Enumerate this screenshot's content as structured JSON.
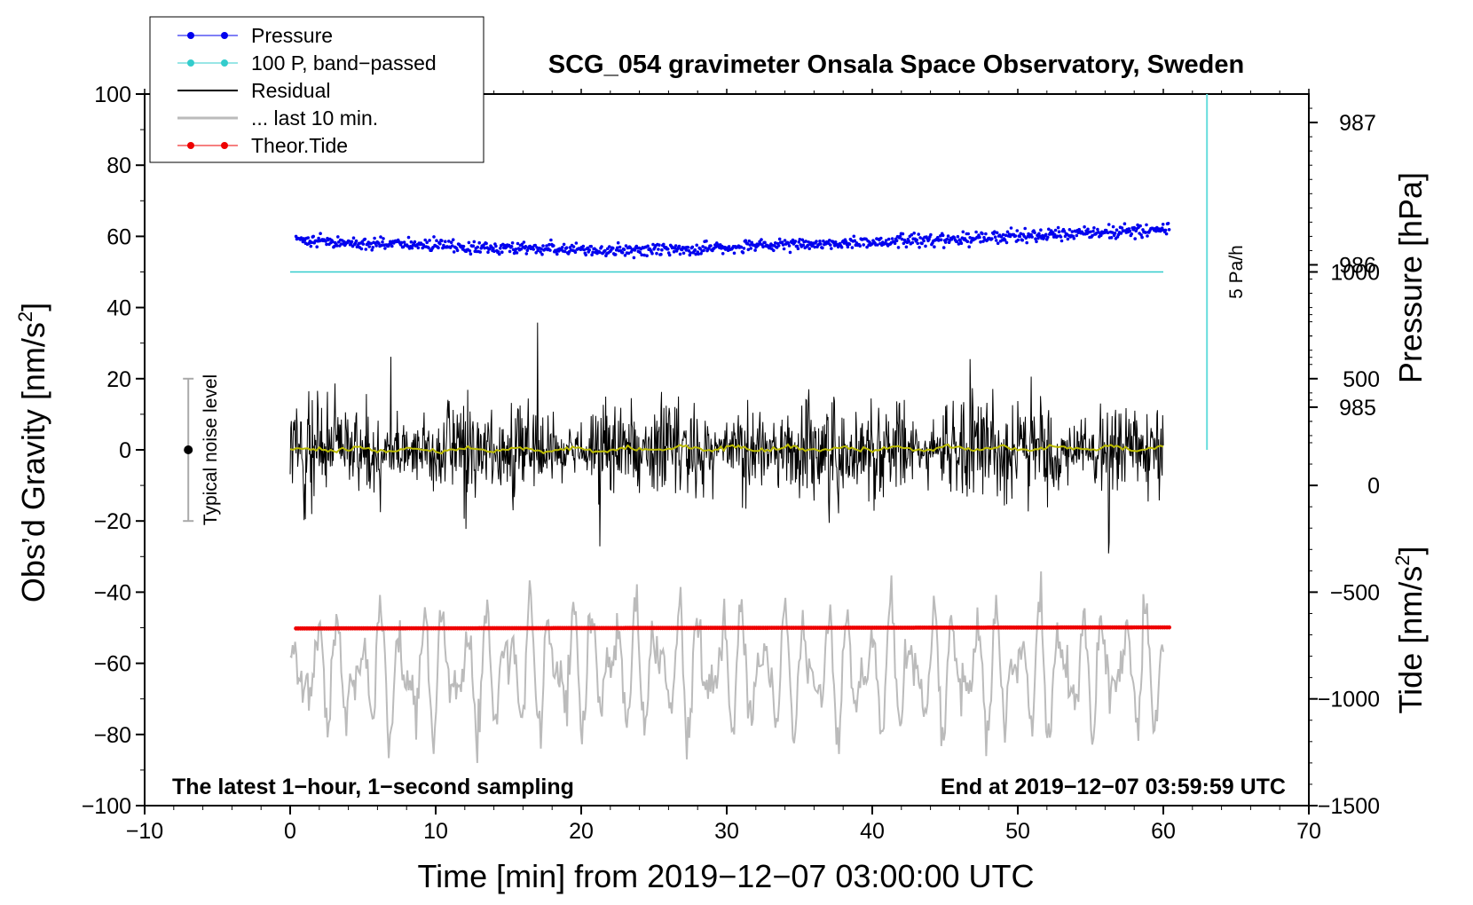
{
  "chart_data": {
    "type": "line",
    "title": "SCG_054 gravimeter Onsala Space Observatory, Sweden",
    "xlabel": "Time [min] from 2019−12−07 03:00:00 UTC",
    "ylabel_left_prefix": "Obs’d Gravity [nm/s",
    "ylabel_left_sup": "2",
    "ylabel_left_suffix": "]",
    "ylabel_pressure": "Pressure [hPa]",
    "ylabel_tide_prefix": "Tide [nm/s",
    "ylabel_tide_sup": "2",
    "ylabel_tide_suffix": "]",
    "xlim": [
      -10,
      70
    ],
    "ylim": [
      -100,
      100
    ],
    "x_ticks": [
      -10,
      0,
      10,
      20,
      30,
      40,
      50,
      60,
      70
    ],
    "x_tick_labels": [
      "−10",
      "0",
      "10",
      "20",
      "30",
      "40",
      "50",
      "60",
      "70"
    ],
    "y_ticks": [
      -100,
      -80,
      -60,
      -40,
      -20,
      0,
      20,
      40,
      60,
      80,
      100
    ],
    "y_tick_labels": [
      "−100",
      "−80",
      "−60",
      "−40",
      "−20",
      "0",
      "20",
      "40",
      "60",
      "80",
      "100"
    ],
    "pressure_axis": {
      "ticks_hpa": [
        985,
        986,
        987
      ],
      "tick_labels": [
        "985",
        "986",
        "987"
      ],
      "hpa_at_gravity_0": 984.7,
      "hpa_per_gravity_unit": 0.025
    },
    "tide_axis": {
      "ticks": [
        -1500,
        -1000,
        -500,
        0,
        500,
        1000
      ],
      "tick_labels": [
        "−1500",
        "−1000",
        "−500",
        "0",
        "500",
        "1000"
      ],
      "tide_at_gravity_minus100": -1500,
      "tide_per_gravity_unit": 0.06
    },
    "legend": {
      "placement": "top-left",
      "entries": [
        {
          "label": "Pressure",
          "color": "#0000ee",
          "marker": "dot"
        },
        {
          "label": "100 P, band−passed",
          "color": "#33cccc",
          "marker": "dot"
        },
        {
          "label": "Residual",
          "color": "#000000",
          "marker": "none"
        },
        {
          "label": "... last 10 min.",
          "color": "#bbbbbb",
          "marker": "none"
        },
        {
          "label": "Theor.Tide",
          "color": "#ee0000",
          "marker": "dot"
        }
      ]
    },
    "annotations": {
      "bottom_left": "The latest 1−hour, 1−second sampling",
      "bottom_right": "End at 2019−12−07 03:59:59 UTC",
      "noise_label": "Typical noise level",
      "rate_label": "5 Pa/h"
    },
    "noise_bar": {
      "x": -7,
      "y_low": -20,
      "y_high": 20,
      "center": 0
    },
    "rate_bar": {
      "x": 63,
      "y_low": 0,
      "y_high": 100
    },
    "series": [
      {
        "name": "Pressure",
        "color": "#0000ee",
        "style": "dots",
        "x_range": [
          0.4,
          60.4
        ],
        "y_start": 59,
        "y_min": 56,
        "y_min_at": 22,
        "y_end": 62,
        "scatter": 1.2
      },
      {
        "name": "100 P, band−passed",
        "color": "#33cccc",
        "style": "line",
        "x_range": [
          0,
          60
        ],
        "y_value": 50
      },
      {
        "name": "Residual",
        "color": "#000000",
        "style": "noise",
        "x_range": [
          0,
          60
        ],
        "center": 0,
        "typical_amplitude": 12,
        "max_abs": 37
      },
      {
        "name": "Residual smoothed",
        "color": "#bbbb00",
        "style": "line",
        "x_range": [
          0,
          60
        ],
        "center": 0,
        "amplitude": 0.8
      },
      {
        "name": "... last 10 min.",
        "color": "#bbbbbb",
        "style": "oscillation",
        "x_range": [
          0,
          60
        ],
        "center": -62,
        "amplitude": 16,
        "min": -88,
        "max": -29
      },
      {
        "name": "Theor.Tide",
        "color": "#ee0000",
        "style": "dots",
        "x_range": [
          0.4,
          60.4
        ],
        "y_start": -50.2,
        "y_end": -49.9
      }
    ]
  }
}
